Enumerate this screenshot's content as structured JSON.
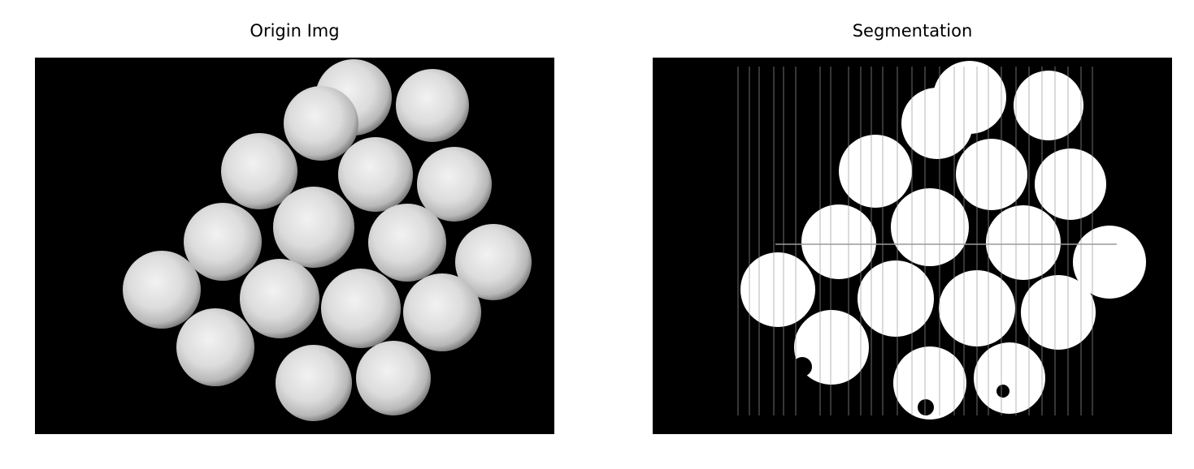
{
  "panels": [
    {
      "title": "Origin Img"
    },
    {
      "title": "Segmentation"
    }
  ],
  "colors": {
    "background": "#000000",
    "sphere_light": "#f0f0f0",
    "sphere_dark": "#8a8a8a",
    "mask": "#ffffff"
  }
}
